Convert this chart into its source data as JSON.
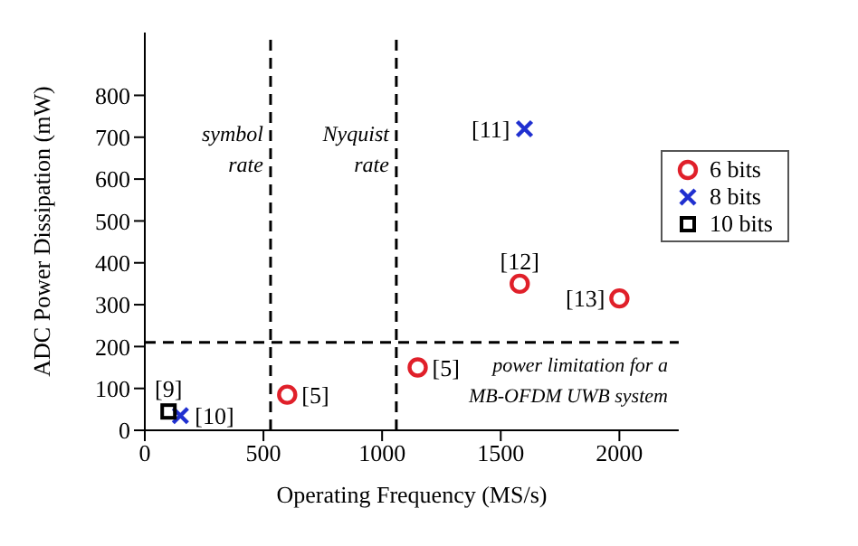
{
  "chart_data": {
    "type": "scatter",
    "xlabel": "Operating Frequency (MS/s)",
    "ylabel": "ADC Power Dissipation (mW)",
    "xlim": [
      0,
      2250
    ],
    "xticks": [
      0,
      500,
      1000,
      1500,
      2000
    ],
    "ylim": [
      0,
      950
    ],
    "yticks": [
      0,
      100,
      200,
      300,
      400,
      500,
      600,
      700,
      800
    ],
    "grid": false,
    "legend": "top right",
    "series": [
      {
        "name": "6 bits",
        "color": "#e0202a",
        "marker": "circle",
        "x": [
          600,
          1150,
          1580,
          2000
        ],
        "values": [
          85,
          150,
          350,
          315
        ]
      },
      {
        "name": "8 bits",
        "color": "#2030d0",
        "marker": "cross",
        "x": [
          1600,
          150
        ],
        "values": [
          720,
          35
        ]
      },
      {
        "name": "10 bits",
        "color": "#000000",
        "marker": "square",
        "x": [
          100
        ],
        "values": [
          45
        ]
      }
    ],
    "ref_lines": [
      {
        "axis": "x",
        "value": 530,
        "label": "symbol\nrate",
        "line_style": "dashed",
        "color": "#000000"
      },
      {
        "axis": "x",
        "value": 1060,
        "label": "Nyquist\nrate",
        "line_style": "dashed",
        "color": "#000000"
      },
      {
        "axis": "y",
        "value": 210,
        "label": "power limitation for a\nMB-OFDM UWB system",
        "line_style": "dashed",
        "color": "#000000"
      }
    ],
    "annotations": [
      {
        "text": "[11]",
        "x": 1600,
        "y": 720
      },
      {
        "text": "[12]",
        "x": 1580,
        "y": 350
      },
      {
        "text": "[13]",
        "x": 2000,
        "y": 315
      },
      {
        "text": "[5]",
        "x": 600,
        "y": 85
      },
      {
        "text": "[5]",
        "x": 1150,
        "y": 150
      },
      {
        "text": "[9]",
        "x": 100,
        "y": 45
      },
      {
        "text": "[10]",
        "x": 150,
        "y": 35
      }
    ]
  }
}
